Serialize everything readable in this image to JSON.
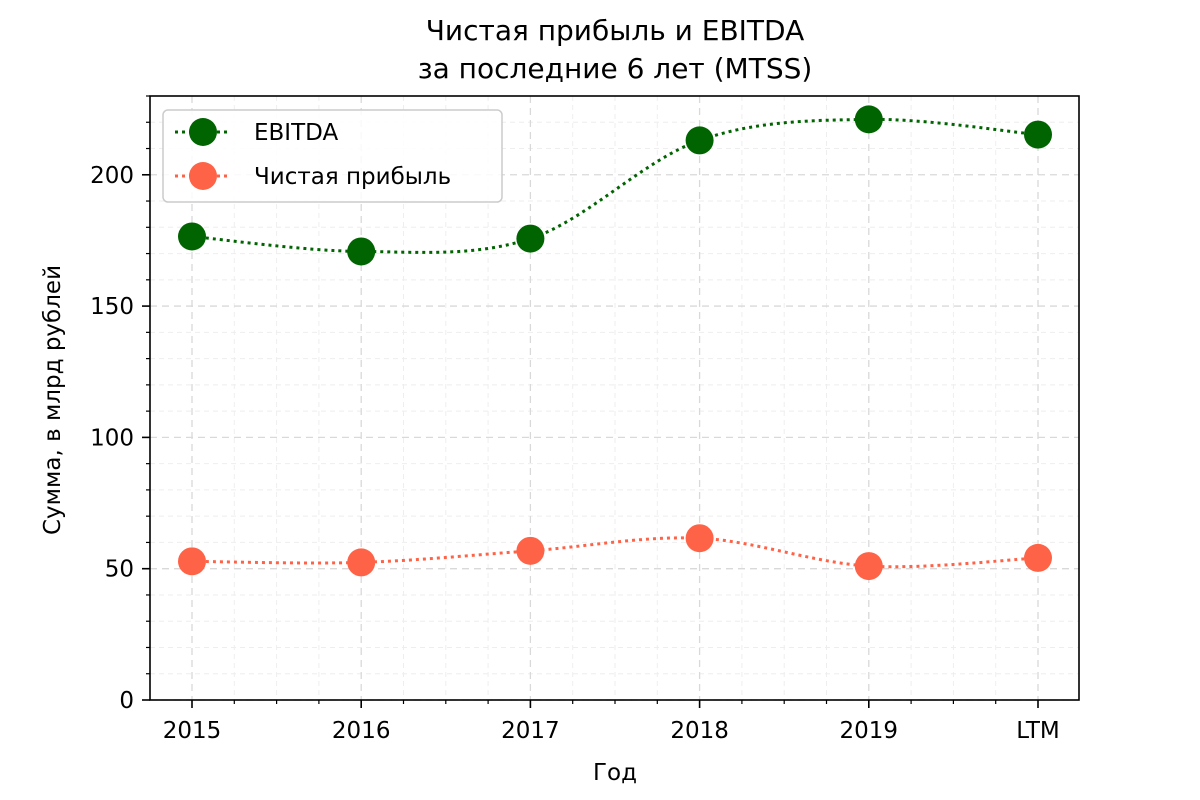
{
  "chart_data": {
    "type": "line",
    "title_lines": [
      "Чистая прибыль и EBITDA",
      "за последние 6 лет (MTSS)"
    ],
    "xlabel": "Год",
    "ylabel": "Сумма, в млрд рублей",
    "categories": [
      "2015",
      "2016",
      "2017",
      "2018",
      "2019",
      "LTM"
    ],
    "yticks": [
      0,
      50,
      100,
      150,
      200
    ],
    "ylim": [
      0,
      230
    ],
    "grid": true,
    "legend_position": "top-left",
    "series": [
      {
        "name": "EBITDA",
        "values": [
          176.5,
          170.8,
          175.7,
          213.1,
          221.1,
          215.3
        ],
        "color": "#006400",
        "line_style": "dotted",
        "marker": "circle"
      },
      {
        "name": "Чистая прибыль",
        "values": [
          52.8,
          52.4,
          56.8,
          61.6,
          51.0,
          54.1
        ],
        "color": "#ff6347",
        "line_style": "dotted",
        "marker": "circle"
      }
    ]
  }
}
